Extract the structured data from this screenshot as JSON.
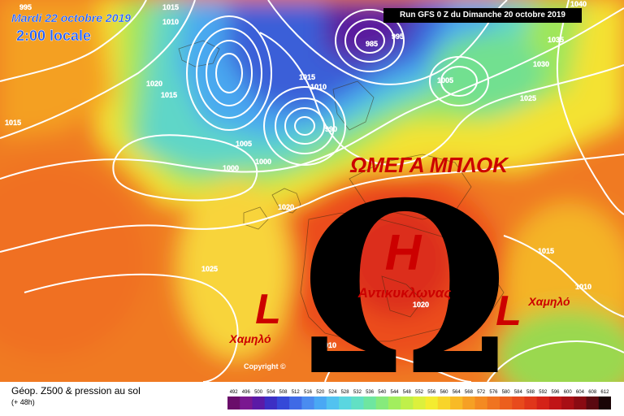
{
  "header": {
    "date": "Mardi 22 octobre 2019",
    "time": "2:00 locale",
    "run": "Run GFS 0 Z du Dimanche 20 octobre 2019"
  },
  "overlay": {
    "title": "ΩΜΕΓΑ ΜΠΛΟΚ",
    "omega": "Ω",
    "high_letter": "H",
    "high_label": "Αντικυκλωνας",
    "low_letter": "L",
    "low_label": "Χαμηλό",
    "copyright": "Copyright ©"
  },
  "isobars": [
    "995",
    "1010",
    "1015",
    "1040",
    "1035",
    "1030",
    "1025",
    "1020",
    "1015",
    "1000",
    "1005",
    "990",
    "985",
    "995",
    "1005",
    "1000",
    "1010",
    "1015",
    "1020",
    "1025",
    "1010",
    "1015",
    "1010",
    "1020",
    "1015"
  ],
  "footer": {
    "title": "Géop. Z500 & pression au sol",
    "subtitle": "(+ 48h)",
    "scale_values": [
      "492",
      "496",
      "500",
      "504",
      "508",
      "512",
      "516",
      "520",
      "524",
      "528",
      "532",
      "536",
      "540",
      "544",
      "548",
      "552",
      "556",
      "560",
      "564",
      "568",
      "572",
      "576",
      "580",
      "584",
      "588",
      "592",
      "596",
      "600",
      "604",
      "608",
      "612"
    ],
    "scale_colors": [
      "#6a0d6a",
      "#7a1890",
      "#5b1aa6",
      "#3c2fc4",
      "#3549d8",
      "#3f6ae6",
      "#4a8cf0",
      "#4aa8f4",
      "#52c2f0",
      "#5ad6e0",
      "#62e0c4",
      "#6ee6a0",
      "#86ea7c",
      "#a2ee5e",
      "#c0f04a",
      "#dcf03c",
      "#f4ec30",
      "#f8d42a",
      "#f8ba26",
      "#f6a024",
      "#f48a22",
      "#f07420",
      "#ec5e1e",
      "#e84a1c",
      "#e0361a",
      "#d42218",
      "#c01416",
      "#a80e14",
      "#8a0a12",
      "#5a0810",
      "#1a0406"
    ]
  },
  "colors": {
    "overlay_text": "#cc0000",
    "header_text": "#1e5cff",
    "omega": "#000000"
  }
}
